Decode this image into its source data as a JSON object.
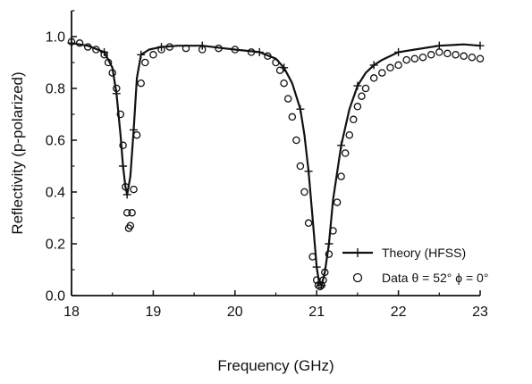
{
  "chart_data": {
    "type": "line",
    "title": "",
    "xlabel": "Frequency (GHz)",
    "ylabel": "Reflectivity (p-polarized)",
    "xlim": [
      18,
      23
    ],
    "ylim": [
      0.0,
      1.1
    ],
    "xticks": [
      "18",
      "19",
      "20",
      "21",
      "22",
      "23"
    ],
    "yticks": [
      "0.0",
      "0.2",
      "0.4",
      "0.6",
      "0.8",
      "1.0"
    ],
    "grid": false,
    "legend_position": "lower-right",
    "series": [
      {
        "name": "Theory (HFSS)",
        "style": "solid line with + markers",
        "color": "#111111",
        "x": [
          18.0,
          18.2,
          18.4,
          18.5,
          18.55,
          18.6,
          18.63,
          18.66,
          18.68,
          18.72,
          18.76,
          18.8,
          18.85,
          18.95,
          19.1,
          19.3,
          19.6,
          20.0,
          20.3,
          20.5,
          20.6,
          20.7,
          20.8,
          20.85,
          20.9,
          20.95,
          21.0,
          21.03,
          21.06,
          21.1,
          21.15,
          21.2,
          21.3,
          21.4,
          21.5,
          21.6,
          21.7,
          21.8,
          22.0,
          22.2,
          22.5,
          22.8,
          23.0
        ],
        "y": [
          0.975,
          0.965,
          0.94,
          0.88,
          0.78,
          0.62,
          0.5,
          0.42,
          0.39,
          0.46,
          0.64,
          0.84,
          0.93,
          0.95,
          0.96,
          0.965,
          0.965,
          0.95,
          0.94,
          0.915,
          0.88,
          0.82,
          0.72,
          0.62,
          0.48,
          0.3,
          0.11,
          0.05,
          0.04,
          0.09,
          0.2,
          0.37,
          0.58,
          0.72,
          0.81,
          0.86,
          0.89,
          0.91,
          0.94,
          0.95,
          0.965,
          0.97,
          0.965
        ]
      },
      {
        "name": "Data  θ = 52° ϕ = 0°",
        "style": "open circles",
        "color": "#111111",
        "x": [
          18.0,
          18.1,
          18.2,
          18.3,
          18.4,
          18.45,
          18.5,
          18.55,
          18.6,
          18.63,
          18.66,
          18.68,
          18.7,
          18.72,
          18.74,
          18.76,
          18.8,
          18.85,
          18.9,
          19.0,
          19.1,
          19.2,
          19.4,
          19.6,
          19.8,
          20.0,
          20.2,
          20.4,
          20.5,
          20.55,
          20.6,
          20.65,
          20.7,
          20.75,
          20.8,
          20.85,
          20.9,
          20.95,
          21.0,
          21.02,
          21.04,
          21.06,
          21.08,
          21.1,
          21.15,
          21.2,
          21.25,
          21.3,
          21.35,
          21.4,
          21.45,
          21.5,
          21.55,
          21.6,
          21.7,
          21.8,
          21.9,
          22.0,
          22.1,
          22.2,
          22.3,
          22.4,
          22.5,
          22.6,
          22.7,
          22.8,
          22.9,
          23.0
        ],
        "y": [
          0.98,
          0.975,
          0.96,
          0.95,
          0.93,
          0.9,
          0.86,
          0.8,
          0.7,
          0.58,
          0.42,
          0.32,
          0.26,
          0.27,
          0.32,
          0.41,
          0.62,
          0.82,
          0.9,
          0.93,
          0.95,
          0.96,
          0.955,
          0.95,
          0.955,
          0.95,
          0.94,
          0.925,
          0.9,
          0.87,
          0.82,
          0.76,
          0.69,
          0.6,
          0.5,
          0.4,
          0.28,
          0.15,
          0.06,
          0.04,
          0.035,
          0.04,
          0.06,
          0.09,
          0.16,
          0.25,
          0.36,
          0.46,
          0.55,
          0.62,
          0.68,
          0.73,
          0.77,
          0.8,
          0.84,
          0.86,
          0.88,
          0.89,
          0.91,
          0.915,
          0.92,
          0.93,
          0.94,
          0.935,
          0.93,
          0.925,
          0.92,
          0.915
        ]
      }
    ]
  }
}
